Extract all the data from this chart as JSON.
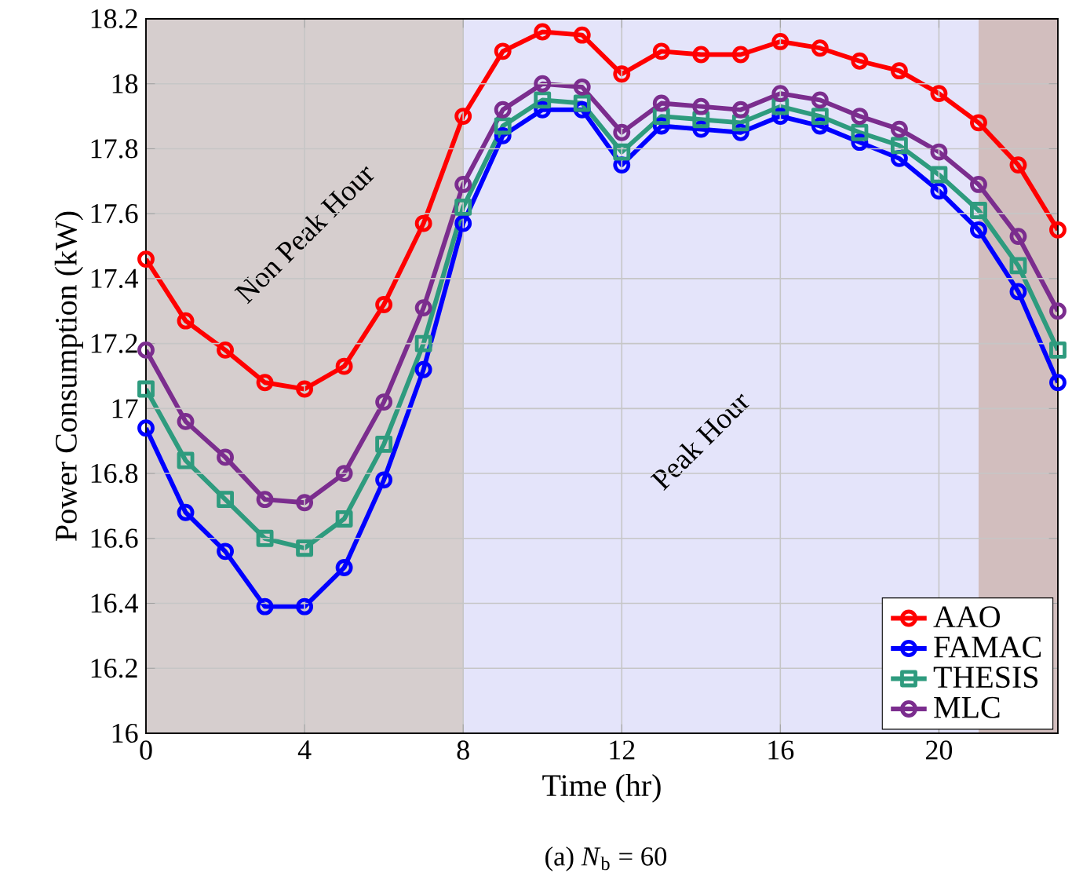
{
  "chart_data": {
    "type": "line",
    "xlabel": "Time (hr)",
    "ylabel": "Power Consumption (kW)",
    "x": [
      0,
      1,
      2,
      3,
      4,
      5,
      6,
      7,
      8,
      9,
      10,
      11,
      12,
      13,
      14,
      15,
      16,
      17,
      18,
      19,
      20,
      21,
      22,
      23
    ],
    "series": [
      {
        "name": "AAO",
        "color": "#ff0000",
        "marker": "circle",
        "values": [
          17.46,
          17.27,
          17.18,
          17.08,
          17.06,
          17.13,
          17.32,
          17.57,
          17.9,
          18.1,
          18.16,
          18.15,
          18.03,
          18.1,
          18.09,
          18.09,
          18.13,
          18.11,
          18.07,
          18.04,
          17.97,
          17.88,
          17.75,
          17.55
        ]
      },
      {
        "name": "FAMAC",
        "color": "#0000ff",
        "marker": "circle",
        "values": [
          16.94,
          16.68,
          16.56,
          16.39,
          16.39,
          16.51,
          16.78,
          17.12,
          17.57,
          17.84,
          17.92,
          17.92,
          17.75,
          17.87,
          17.86,
          17.85,
          17.9,
          17.87,
          17.82,
          17.77,
          17.67,
          17.55,
          17.36,
          17.08
        ]
      },
      {
        "name": "THESIS",
        "color": "#2e9b7e",
        "marker": "square",
        "values": [
          17.06,
          16.84,
          16.72,
          16.6,
          16.57,
          16.66,
          16.89,
          17.2,
          17.62,
          17.87,
          17.95,
          17.94,
          17.79,
          17.9,
          17.89,
          17.88,
          17.93,
          17.9,
          17.85,
          17.81,
          17.72,
          17.61,
          17.44,
          17.18
        ]
      },
      {
        "name": "MLC",
        "color": "#7b2d8e",
        "marker": "circle",
        "values": [
          17.18,
          16.96,
          16.85,
          16.72,
          16.71,
          16.8,
          17.02,
          17.31,
          17.69,
          17.92,
          18.0,
          17.99,
          17.85,
          17.94,
          17.93,
          17.92,
          17.97,
          17.95,
          17.9,
          17.86,
          17.79,
          17.69,
          17.53,
          17.3
        ]
      }
    ],
    "xlim": [
      0,
      23
    ],
    "xticks": [
      0,
      4,
      8,
      12,
      16,
      20
    ],
    "ylim": [
      16,
      18.2
    ],
    "yticks": [
      16,
      16.2,
      16.4,
      16.6,
      16.8,
      17,
      17.2,
      17.4,
      17.6,
      17.8,
      18,
      18.2
    ],
    "bands": [
      {
        "axis": "x",
        "from": 0,
        "to": 8,
        "label": "Non Peak Hour",
        "color": "#d6cece"
      },
      {
        "axis": "x",
        "from": 8,
        "to": 21,
        "label": "Peak Hour",
        "color": "#e4e4fa"
      },
      {
        "axis": "x",
        "from": 21,
        "to": 23,
        "color": "#d2bebe"
      }
    ],
    "annotations": [
      "(a) *N*$_{b}$ = 60"
    ],
    "grid": true,
    "legend": "bottom right",
    "line_style": "solid"
  }
}
